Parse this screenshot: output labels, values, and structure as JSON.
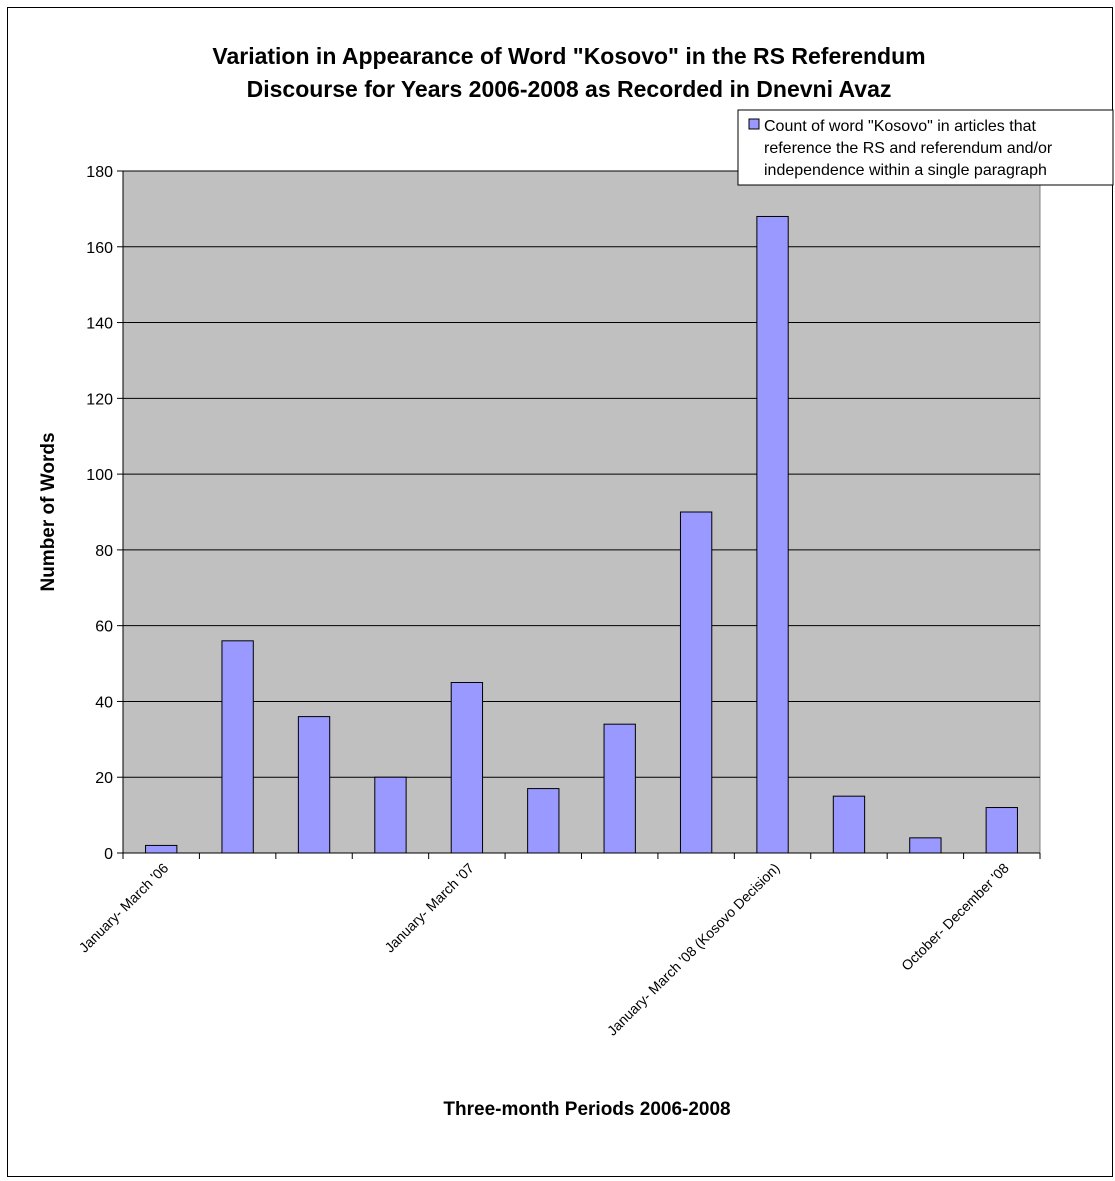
{
  "chart_data": {
    "type": "bar",
    "title": [
      "Variation in Appearance of Word \"Kosovo\" in the RS Referendum",
      "Discourse for Years 2006-2008 as Recorded in Dnevni Avaz"
    ],
    "xlabel": "Three-month Periods 2006-2008",
    "ylabel": "Number of Words",
    "ylim": [
      0,
      180
    ],
    "yticks": [
      0,
      20,
      40,
      60,
      80,
      100,
      120,
      140,
      160,
      180
    ],
    "categories": [
      "January- March '06",
      "",
      "",
      "",
      "January- March '07",
      "",
      "",
      "",
      "January- March '08 (Kosovo Decision)",
      "",
      "",
      "October- December '08"
    ],
    "series": [
      {
        "name": [
          "Count of word \"Kosovo\" in articles that",
          "reference the RS and referendum and/or",
          "independence within a single paragraph"
        ],
        "values": [
          2,
          56,
          36,
          20,
          45,
          17,
          34,
          90,
          168,
          15,
          4,
          12
        ]
      }
    ],
    "grid": true,
    "legend_position": "top-right",
    "colors": {
      "bar_fill": "#9999ff",
      "plot_background": "#c0c0c0",
      "gridline": "#000000",
      "axis": "#000000"
    }
  }
}
